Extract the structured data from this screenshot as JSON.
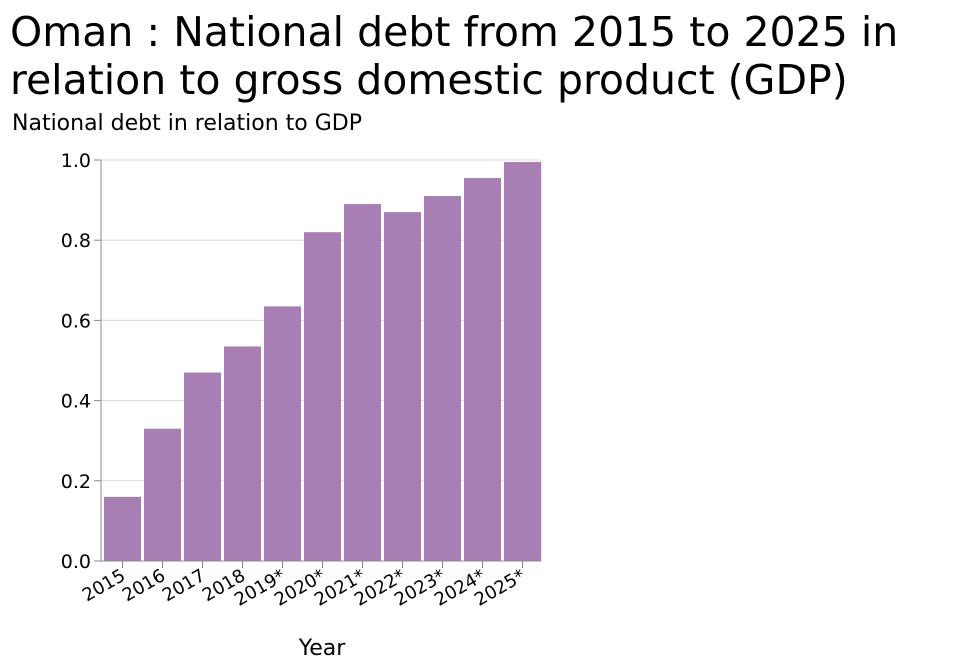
{
  "chart_data": {
    "type": "bar",
    "title_lines": [
      "Oman : National debt from 2015 to 2025 in",
      "relation to gross domestic product (GDP)"
    ],
    "ylabel": "National debt in relation to GDP",
    "xlabel": "Year",
    "categories": [
      "2015",
      "2016",
      "2017",
      "2018",
      "2019*",
      "2020*",
      "2021*",
      "2022*",
      "2023*",
      "2024*",
      "2025*"
    ],
    "values": [
      0.16,
      0.33,
      0.47,
      0.535,
      0.635,
      0.82,
      0.89,
      0.87,
      0.91,
      0.955,
      0.995
    ],
    "ylim": [
      0,
      1.0
    ],
    "yticks": [
      "0.0",
      "0.2",
      "0.4",
      "0.6",
      "0.8",
      "1.0"
    ],
    "grid": true,
    "legend": "none",
    "colors": {
      "bar": "#a77fb4",
      "grid": "#d9d9d9",
      "axis": "#888888"
    }
  }
}
